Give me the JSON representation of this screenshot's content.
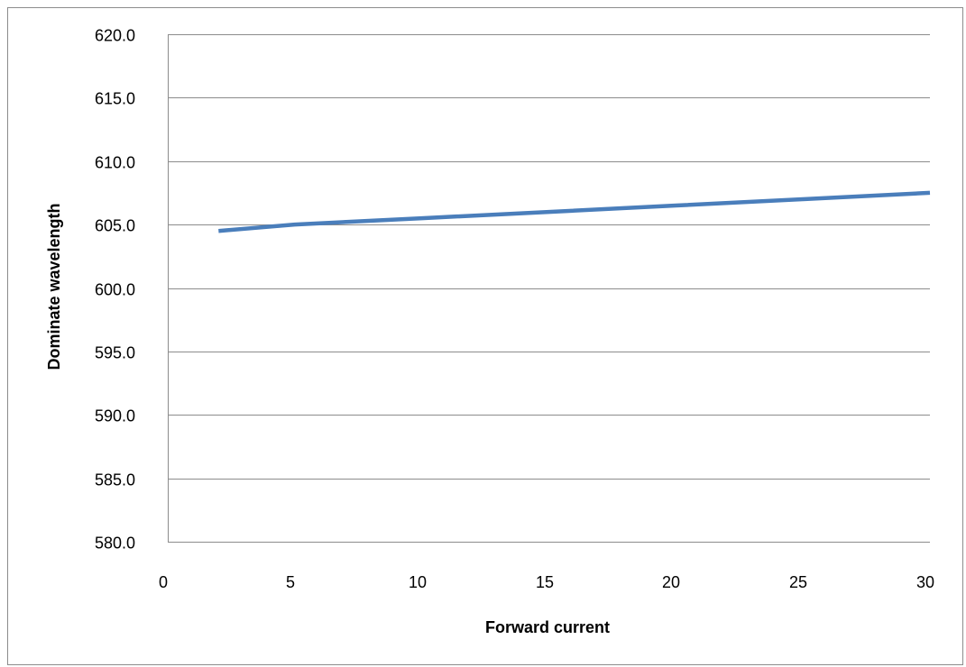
{
  "chart_data": {
    "type": "line",
    "title": "",
    "xlabel": "Forward current",
    "ylabel": "Dominate wavelength",
    "xlim": [
      0,
      30
    ],
    "ylim": [
      580.0,
      620.0
    ],
    "x_ticks": [
      "0",
      "5",
      "10",
      "15",
      "20",
      "25",
      "30"
    ],
    "y_ticks": [
      "620.0",
      "615.0",
      "610.0",
      "605.0",
      "600.0",
      "595.0",
      "590.0",
      "585.0",
      "580.0"
    ],
    "grid": true,
    "legend": "none",
    "series": [
      {
        "color": "#4a7ebb",
        "x": [
          2,
          5,
          10,
          15,
          20,
          25,
          30
        ],
        "values": [
          604.5,
          605.0,
          605.5,
          606.0,
          606.5,
          607.0,
          607.5
        ]
      }
    ]
  }
}
